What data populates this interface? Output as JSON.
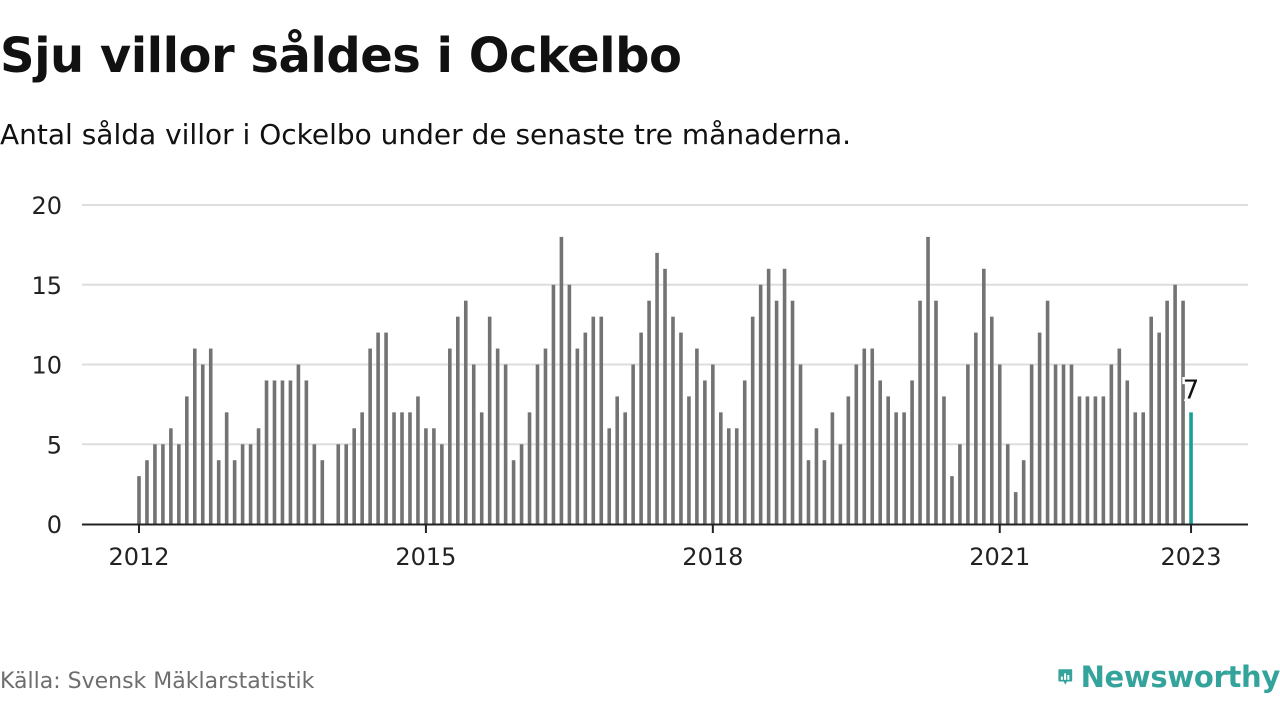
{
  "header": {
    "title": "Sju villor såldes i Ockelbo",
    "subtitle": "Antal sålda villor i Ockelbo under de senaste tre månaderna."
  },
  "footer": {
    "source": "Källa: Svensk Mäklarstatistik",
    "brand": "Newsworthy",
    "brand_icon": "newsworthy-bar-chart-icon"
  },
  "colors": {
    "bar": "#737373",
    "highlight": "#1a9e98",
    "grid": "#dddddd",
    "axis": "#222222",
    "brand": "#34a39b"
  },
  "chart_data": {
    "type": "bar",
    "title": "Sju villor såldes i Ockelbo",
    "subtitle": "Antal sålda villor i Ockelbo under de senaste tre månaderna.",
    "xlabel": "",
    "ylabel": "",
    "ylim": [
      0,
      20
    ],
    "y_ticks": [
      0,
      5,
      10,
      15,
      20
    ],
    "x_tick_labels": [
      "2012",
      "2015",
      "2018",
      "2021",
      "2023"
    ],
    "x_range": [
      "2011-06",
      "2023-06"
    ],
    "grid": true,
    "legend": "none",
    "start_month": "2012-01",
    "values": [
      3,
      4,
      5,
      5,
      6,
      5,
      8,
      11,
      10,
      11,
      4,
      7,
      4,
      5,
      5,
      6,
      9,
      9,
      9,
      9,
      10,
      9,
      5,
      4,
      null,
      5,
      5,
      6,
      7,
      11,
      12,
      12,
      7,
      7,
      7,
      8,
      6,
      6,
      5,
      11,
      13,
      14,
      10,
      7,
      13,
      11,
      10,
      4,
      5,
      7,
      10,
      11,
      15,
      18,
      15,
      11,
      12,
      13,
      13,
      6,
      8,
      7,
      10,
      12,
      14,
      17,
      16,
      13,
      12,
      8,
      11,
      9,
      10,
      7,
      6,
      6,
      9,
      13,
      15,
      16,
      14,
      16,
      14,
      10,
      4,
      6,
      4,
      7,
      5,
      8,
      10,
      11,
      11,
      9,
      8,
      7,
      7,
      9,
      14,
      18,
      14,
      8,
      3,
      5,
      10,
      12,
      16,
      13,
      10,
      5,
      2,
      4,
      10,
      12,
      14,
      10,
      10,
      10,
      8,
      8,
      8,
      8,
      10,
      11,
      9,
      7,
      7,
      13,
      12,
      14,
      15,
      14,
      7
    ],
    "highlight": {
      "date": "2023-01",
      "value": 7,
      "label": "7"
    }
  }
}
